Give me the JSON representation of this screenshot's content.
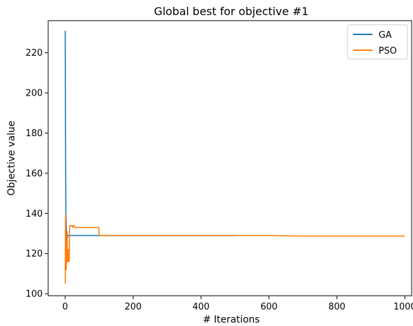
{
  "chart_data": {
    "type": "line",
    "title": "Global best for objective #1",
    "xlabel": "# Iterations",
    "ylabel": "Objective value",
    "xlim": [
      -50,
      1020
    ],
    "ylim": [
      99,
      236
    ],
    "xticks": [
      0,
      200,
      400,
      600,
      800,
      1000
    ],
    "yticks": [
      100,
      120,
      140,
      160,
      180,
      200,
      220
    ],
    "grid": false,
    "legend_position": "top-right",
    "series": [
      {
        "name": "GA",
        "color": "#1f77b4",
        "x": [
          0,
          2,
          4,
          5,
          6,
          7,
          8,
          10,
          12,
          500
        ],
        "y": [
          231,
          140,
          129,
          124,
          130,
          128,
          129,
          129,
          129,
          129
        ]
      },
      {
        "name": "PSO",
        "color": "#ff7f0e",
        "x": [
          0,
          1,
          2,
          3,
          4,
          5,
          6,
          7,
          8,
          9,
          10,
          11,
          12,
          13,
          14,
          16,
          20,
          22,
          25,
          30,
          40,
          60,
          80,
          99,
          100,
          101,
          200,
          400,
          600,
          700,
          800,
          1000
        ],
        "y": [
          105,
          139,
          121,
          112,
          116,
          119,
          131,
          116,
          121,
          122,
          116,
          116,
          116,
          131,
          134,
          134,
          134,
          133,
          134,
          133,
          133,
          133,
          133,
          133,
          130,
          129,
          129,
          129,
          129,
          128.7,
          128.7,
          128.7
        ]
      }
    ]
  }
}
